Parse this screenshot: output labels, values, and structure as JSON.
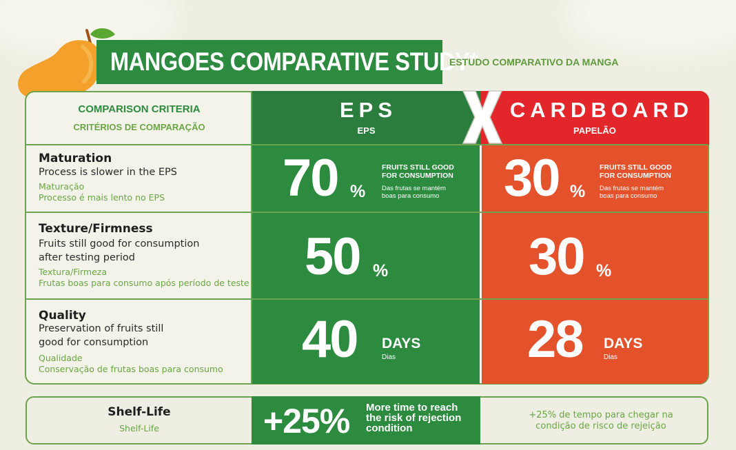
{
  "title": "MANGOES COMPARATIVE STUDY*",
  "subtitle": "ESTUDO COMPARATIVO DA MANGA",
  "header": {
    "criteria_en": "COMPARISON CRITERIA",
    "criteria_pt": "CRITÉRIOS DE COMPARAÇÃO",
    "eps_big": "EPS",
    "eps_small": "EPS",
    "vs": "X",
    "card_big": "CARDBOARD",
    "card_small": "PAPELÃO"
  },
  "rows": [
    {
      "title": "Maturation",
      "desc1": "Process is slower in the EPS",
      "pt1": "Maturação",
      "pt2": "Processo é mais lento no EPS",
      "eps_value": "70",
      "eps_unit": "%",
      "card_value": "30",
      "card_unit": "%",
      "note_en1": "FRUITS STILL GOOD",
      "note_en2": "FOR CONSUMPTION",
      "note_pt1": "Das frutas se mantém",
      "note_pt2": "boas para consumo"
    },
    {
      "title": "Texture/Firmness",
      "desc1": "Fruits still good for consumption",
      "desc2": "after testing period",
      "pt1": "Textura/Firmeza",
      "pt2": "Frutas boas para consumo após período de teste",
      "eps_value": "50",
      "eps_unit": "%",
      "card_value": "30",
      "card_unit": "%"
    },
    {
      "title": "Quality",
      "desc1": "Preservation of fruits still",
      "desc2": "good for consumption",
      "pt1": "Qualidade",
      "pt2": "Conservação de frutas boas para consumo",
      "eps_value": "40",
      "eps_unit": "DAYS",
      "eps_unit_pt": "Dias",
      "card_value": "28",
      "card_unit": "DAYS",
      "card_unit_pt": "Dias"
    }
  ],
  "shelf": {
    "title": "Shelf-Life",
    "pt": "Shelf-Life",
    "value": "+25%",
    "note_en1": "More time to reach",
    "note_en2": "the risk of rejection",
    "note_en3": "condition",
    "note_pt1": "+25% de tempo para chegar na",
    "note_pt2": "condição de risco de rejeição"
  },
  "colors": {
    "eps_green": "#2c8b3f",
    "card_red": "#e2262a",
    "card_orange": "#e4522b",
    "accent_green": "#6aa544"
  }
}
